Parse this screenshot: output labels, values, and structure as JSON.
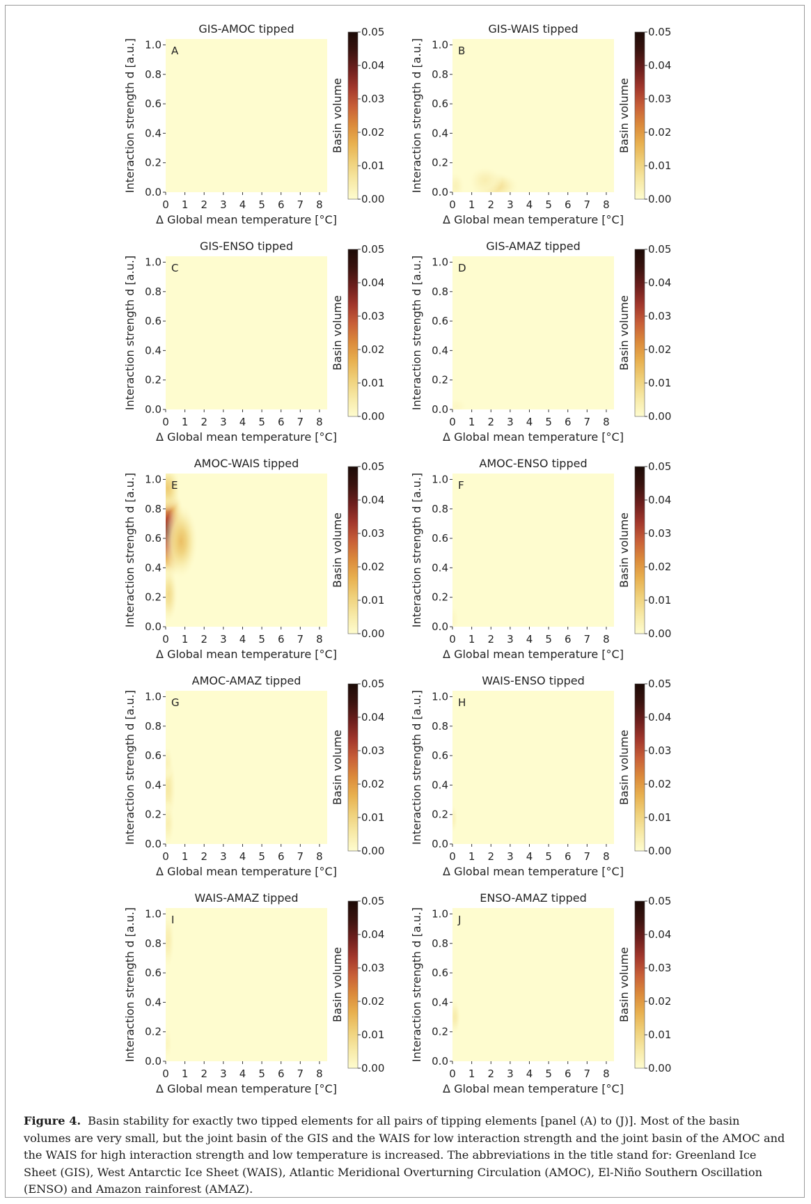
{
  "colors": {
    "colormap": [
      "#fefccf",
      "#f7e9a6",
      "#efd07a",
      "#e8b04f",
      "#db8a3b",
      "#c85f38",
      "#a2372c",
      "#6d1f1d",
      "#3a130f",
      "#1c0b07"
    ],
    "frame": "#9a9a9a",
    "text": "#222222"
  },
  "figure": {
    "xlabel": "Δ Global mean temperature [°C]",
    "ylabel": "Interaction strength d [a.u.]",
    "colorbar_label": "Basin volume",
    "xticks": [
      "0",
      "1",
      "2",
      "3",
      "4",
      "5",
      "6",
      "7",
      "8"
    ],
    "yticks": [
      "0.0",
      "0.2",
      "0.4",
      "0.6",
      "0.8",
      "1.0"
    ],
    "cbticks": [
      "0.00",
      "0.01",
      "0.02",
      "0.03",
      "0.04",
      "0.05"
    ]
  },
  "chart_data": [
    {
      "type": "heatmap",
      "panel": "A",
      "title": "GIS-AMOC tipped",
      "xlim": [
        0,
        8.4
      ],
      "ylim": [
        0,
        1.04
      ],
      "clim": [
        0,
        0.05
      ],
      "blobs": []
    },
    {
      "type": "heatmap",
      "panel": "B",
      "title": "GIS-WAIS tipped",
      "xlim": [
        0,
        8.4
      ],
      "ylim": [
        0,
        1.04
      ],
      "clim": [
        0,
        0.05
      ],
      "blobs": [
        {
          "x": 2.2,
          "y": 0.04,
          "sx": 0.65,
          "sy": 0.05,
          "peak": 0.0085
        },
        {
          "x": 1.7,
          "y": 0.08,
          "sx": 0.45,
          "sy": 0.05,
          "peak": 0.004
        },
        {
          "x": 0.15,
          "y": 0.04,
          "sx": 0.25,
          "sy": 0.05,
          "peak": 0.003
        }
      ]
    },
    {
      "type": "heatmap",
      "panel": "C",
      "title": "GIS-ENSO tipped",
      "xlim": [
        0,
        8.4
      ],
      "ylim": [
        0,
        1.04
      ],
      "clim": [
        0,
        0.05
      ],
      "blobs": []
    },
    {
      "type": "heatmap",
      "panel": "D",
      "title": "GIS-AMAZ tipped",
      "xlim": [
        0,
        8.4
      ],
      "ylim": [
        0,
        1.04
      ],
      "clim": [
        0,
        0.05
      ],
      "blobs": [
        {
          "x": 0.2,
          "y": 0.02,
          "sx": 0.3,
          "sy": 0.03,
          "peak": 0.0015
        }
      ]
    },
    {
      "type": "heatmap",
      "panel": "E",
      "title": "AMOC-WAIS tipped",
      "xlim": [
        0,
        8.4
      ],
      "ylim": [
        0,
        1.04
      ],
      "clim": [
        0,
        0.05
      ],
      "blobs": [
        {
          "x": 0.15,
          "y": 0.64,
          "sx": 0.45,
          "sy": 0.17,
          "peak": 0.04
        },
        {
          "x": 0.8,
          "y": 0.58,
          "sx": 0.45,
          "sy": 0.13,
          "peak": 0.014
        },
        {
          "x": 0.1,
          "y": 0.94,
          "sx": 0.35,
          "sy": 0.08,
          "peak": 0.012
        },
        {
          "x": 0.15,
          "y": 0.22,
          "sx": 0.25,
          "sy": 0.1,
          "peak": 0.009
        }
      ]
    },
    {
      "type": "heatmap",
      "panel": "F",
      "title": "AMOC-ENSO tipped",
      "xlim": [
        0,
        8.4
      ],
      "ylim": [
        0,
        1.04
      ],
      "clim": [
        0,
        0.05
      ],
      "blobs": [
        {
          "x": 0.05,
          "y": 0.05,
          "sx": 0.15,
          "sy": 0.05,
          "peak": 0.0015
        }
      ]
    },
    {
      "type": "heatmap",
      "panel": "G",
      "title": "AMOC-AMAZ tipped",
      "xlim": [
        0,
        8.4
      ],
      "ylim": [
        0,
        1.04
      ],
      "clim": [
        0,
        0.05
      ],
      "blobs": [
        {
          "x": 0.12,
          "y": 0.38,
          "sx": 0.22,
          "sy": 0.12,
          "peak": 0.006
        },
        {
          "x": 0.12,
          "y": 0.14,
          "sx": 0.18,
          "sy": 0.08,
          "peak": 0.004
        },
        {
          "x": 0.1,
          "y": 0.55,
          "sx": 0.15,
          "sy": 0.06,
          "peak": 0.003
        }
      ]
    },
    {
      "type": "heatmap",
      "panel": "H",
      "title": "WAIS-ENSO tipped",
      "xlim": [
        0,
        8.4
      ],
      "ylim": [
        0,
        1.04
      ],
      "clim": [
        0,
        0.05
      ],
      "blobs": [
        {
          "x": 0.05,
          "y": 0.17,
          "sx": 0.12,
          "sy": 0.05,
          "peak": 0.003
        }
      ]
    },
    {
      "type": "heatmap",
      "panel": "I",
      "title": "WAIS-AMAZ tipped",
      "xlim": [
        0,
        8.4
      ],
      "ylim": [
        0,
        1.04
      ],
      "clim": [
        0,
        0.05
      ],
      "blobs": [
        {
          "x": 0.12,
          "y": 0.82,
          "sx": 0.18,
          "sy": 0.1,
          "peak": 0.0045
        },
        {
          "x": 0.1,
          "y": 0.12,
          "sx": 0.12,
          "sy": 0.06,
          "peak": 0.002
        }
      ]
    },
    {
      "type": "heatmap",
      "panel": "J",
      "title": "ENSO-AMAZ tipped",
      "xlim": [
        0,
        8.4
      ],
      "ylim": [
        0,
        1.04
      ],
      "clim": [
        0,
        0.05
      ],
      "blobs": [
        {
          "x": 0.12,
          "y": 0.3,
          "sx": 0.16,
          "sy": 0.06,
          "peak": 0.005
        }
      ]
    }
  ],
  "caption": {
    "label": "Figure 4.",
    "text": "Basin stability for exactly two tipped elements for all pairs of tipping elements [panel (A) to (J)]. Most of the basin volumes are very small, but the joint basin of the GIS and the WAIS for low interaction strength and the joint basin of the AMOC and the WAIS for high interaction strength and low temperature is increased. The abbreviations in the title stand for: Greenland Ice Sheet (GIS), West Antarctic Ice Sheet (WAIS), Atlantic Meridional Overturning Circulation (AMOC), El-Niño Southern Oscillation (ENSO) and Amazon rainforest (AMAZ)."
  }
}
